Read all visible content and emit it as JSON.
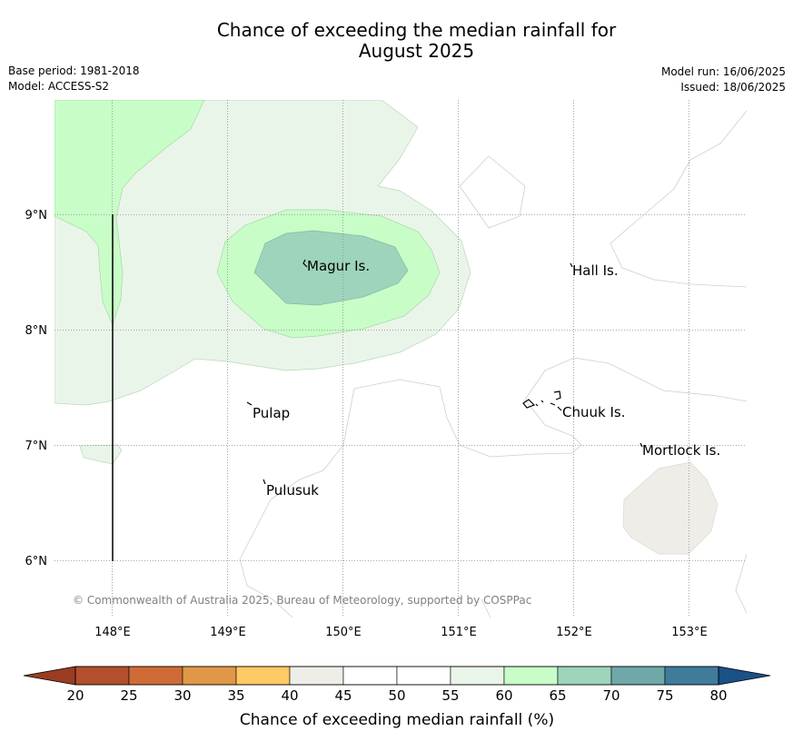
{
  "title": {
    "line1": "Chance of exceeding the median rainfall for",
    "line2": "August 2025"
  },
  "meta": {
    "base_period": "Base period: 1981-2018",
    "model": "Model: ACCESS-S2",
    "model_run": "Model run: 16/06/2025",
    "issued": "Issued: 18/06/2025"
  },
  "map": {
    "lon_labels": [
      "148°E",
      "149°E",
      "150°E",
      "151°E",
      "152°E",
      "153°E"
    ],
    "lat_labels": [
      "9°N",
      "8°N",
      "7°N",
      "6°N"
    ],
    "places": [
      "Magur Is.",
      "Hall Is.",
      "Pulap",
      "Chuuk Is.",
      "Mortlock Is.",
      "Pulusuk"
    ],
    "copyright": "© Commonwealth of Australia 2025, Bureau of Meteorology, supported by COSPPac"
  },
  "colorbar": {
    "label": "Chance of exceeding median rainfall (%)",
    "ticks": [
      "20",
      "25",
      "30",
      "35",
      "40",
      "45",
      "50",
      "55",
      "60",
      "65",
      "70",
      "75",
      "80"
    ],
    "colors": [
      "#b34f2c",
      "#cf6b36",
      "#e09848",
      "#fdca63",
      "#efede8",
      "#ffffff",
      "#ffffff",
      "#eaf5ea",
      "#c8fdc8",
      "#9ed4bc",
      "#6ea8a8",
      "#3e7c9a"
    ],
    "under_color": "#9b3c22",
    "over_color": "#1a5186"
  }
}
